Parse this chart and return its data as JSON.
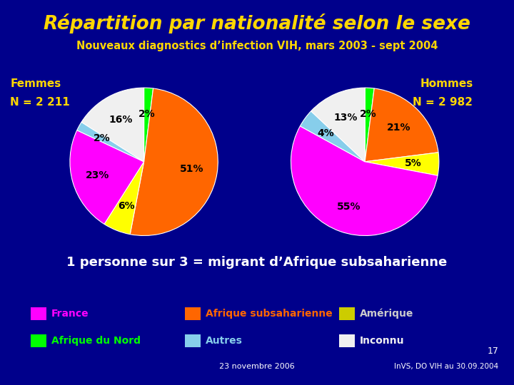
{
  "title": "Répartition par nationalité selon le sexe",
  "subtitle": "Nouveaux diagnostics d’infection VIH, mars 2003 - sept 2004",
  "background_color": "#00008B",
  "title_color": "#FFD700",
  "subtitle_color": "#FFD700",
  "text_color": "#FFFFFF",
  "yellow_color": "#FFD700",
  "femmes_label": "Femmes",
  "femmes_n": "N = 2 211",
  "hommes_label": "Hommes",
  "hommes_n": "N = 2 982",
  "categories": [
    "Afrique subsaharienne",
    "France",
    "Afrique du Nord",
    "Amérique",
    "Autres",
    "Inconnu"
  ],
  "pie_colors": [
    "#FF6600",
    "#FF00FF",
    "#00FF00",
    "#FFFF00",
    "#87CEEB",
    "#F0F0F0"
  ],
  "femmes_order": [
    "Afrique du Nord",
    "Afrique subsaharienne",
    "Amérique",
    "France",
    "Autres",
    "Inconnu"
  ],
  "femmes_values": [
    2,
    51,
    6,
    23,
    2,
    16
  ],
  "femmes_colors": [
    "#00FF00",
    "#FF6600",
    "#FFFF00",
    "#FF00FF",
    "#87CEEB",
    "#F0F0F0"
  ],
  "femmes_labels": [
    "2%",
    "51%",
    "6%",
    "23%",
    "2%",
    "16%"
  ],
  "femmes_startangle": 90,
  "hommes_order": [
    "Afrique du Nord",
    "Afrique subsaharienne",
    "Amérique",
    "France",
    "Autres",
    "Inconnu"
  ],
  "hommes_values": [
    2,
    21,
    5,
    55,
    4,
    13
  ],
  "hommes_colors": [
    "#00FF00",
    "#FF6600",
    "#FFFF00",
    "#FF00FF",
    "#87CEEB",
    "#F0F0F0"
  ],
  "hommes_labels": [
    "2%",
    "21%",
    "5%",
    "55%",
    "4%",
    "13%"
  ],
  "hommes_startangle": 90,
  "bottom_text": "1 personne sur 3 = migrant d’Afrique subsaharienne",
  "footer_left": "23 novembre 2006",
  "footer_right": "InVS, DO VIH au 30.09.2004",
  "footer_page": "17",
  "legend_row1": [
    {
      "color": "#FF00FF",
      "label": "France",
      "label_color": "#FF00FF"
    },
    {
      "color": "#FF6600",
      "label": "Afrique subsaharienne",
      "label_color": "#FF6600"
    },
    {
      "color": "#CCCC00",
      "label": "Amérique",
      "label_color": "#CCCCCC"
    }
  ],
  "legend_row2": [
    {
      "color": "#00FF00",
      "label": "Afrique du Nord",
      "label_color": "#00FF00"
    },
    {
      "color": "#87CEEB",
      "label": "Autres",
      "label_color": "#87CEEB"
    },
    {
      "color": "#F0F0F0",
      "label": "Inconnu",
      "label_color": "#F0F0F0"
    }
  ]
}
